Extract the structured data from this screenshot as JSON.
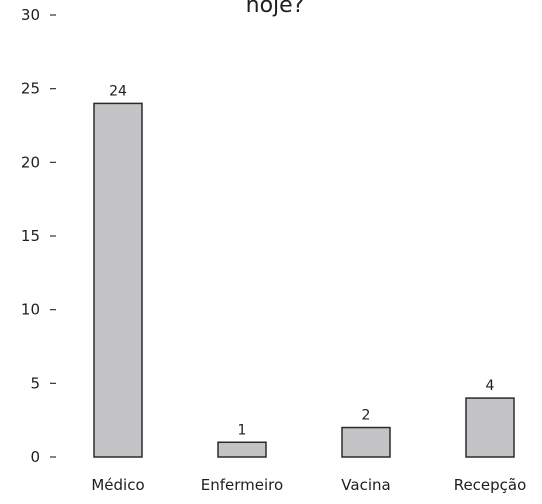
{
  "chart_data": {
    "type": "bar",
    "title": "hoje?",
    "categories": [
      "Médico",
      "Enfermeiro",
      "Vacina",
      "Recepção"
    ],
    "values": [
      24,
      1,
      2,
      4
    ],
    "data_labels": [
      "24",
      "1",
      "2",
      "4"
    ],
    "ylim": [
      0,
      30
    ],
    "yticks": [
      0,
      5,
      10,
      15,
      20,
      25,
      30
    ],
    "ytick_labels": [
      "0",
      "5",
      "10",
      "15",
      "20",
      "25",
      "30"
    ],
    "xlabel": "",
    "ylabel": "",
    "grid": false,
    "legend": "none",
    "bar_color": "#c4c4c6",
    "bar_stroke": "#2b2b2b"
  }
}
